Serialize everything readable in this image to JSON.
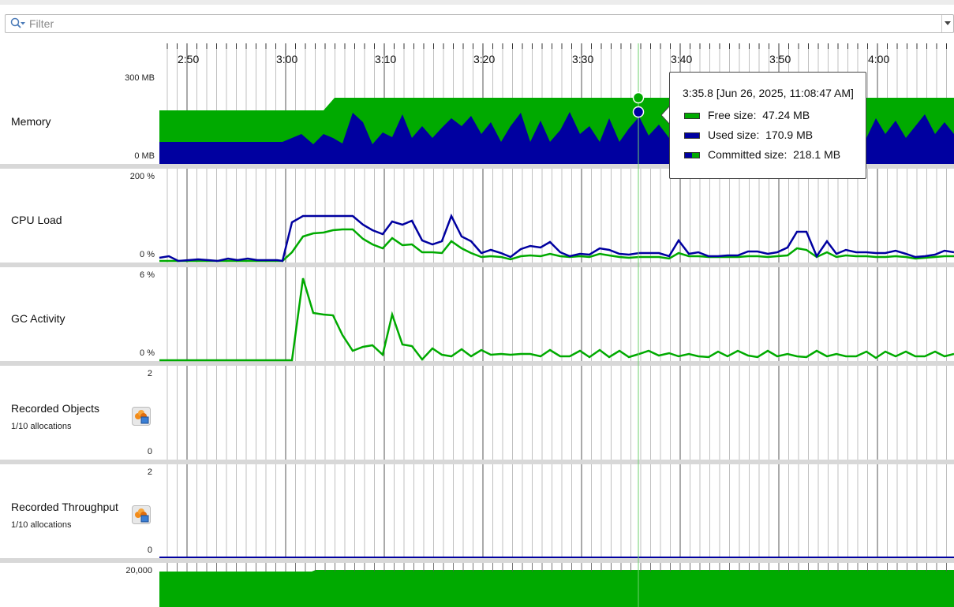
{
  "filter": {
    "placeholder": "Filter"
  },
  "time_axis": {
    "labels": [
      "2:50",
      "3:00",
      "3:10",
      "3:20",
      "3:30",
      "3:40",
      "3:50",
      "4:00"
    ]
  },
  "rows": {
    "memory": {
      "label": "Memory",
      "y_max": "300 MB",
      "y_min": "0 MB"
    },
    "cpu": {
      "label": "CPU Load",
      "y_max": "200 %",
      "y_min": "0 %"
    },
    "gc": {
      "label": "GC Activity",
      "y_max": "6 %",
      "y_min": "0 %"
    },
    "objects": {
      "label": "Recorded Objects",
      "sublabel": "1/10 allocations",
      "y_max": "2",
      "y_min": "0",
      "icon": "allocation-recording-icon"
    },
    "throughput": {
      "label": "Recorded Throughput",
      "sublabel": "1/10 allocations",
      "y_max": "2",
      "y_min": "0",
      "icon": "allocation-recording-icon"
    },
    "bottom": {
      "y_max": "20,000"
    }
  },
  "tooltip": {
    "title": "3:35.8 [Jun 26, 2025, 11:08:47 AM]",
    "free": {
      "label": "Free size:",
      "value": "47.24 MB"
    },
    "used": {
      "label": "Used size:",
      "value": "170.9 MB"
    },
    "committed": {
      "label": "Committed size:",
      "value": "218.1 MB"
    }
  },
  "colors": {
    "green": "#00aa00",
    "blue": "#0000a0",
    "grid": "#b0b0b0",
    "separator": "#d8d8d8"
  }
}
